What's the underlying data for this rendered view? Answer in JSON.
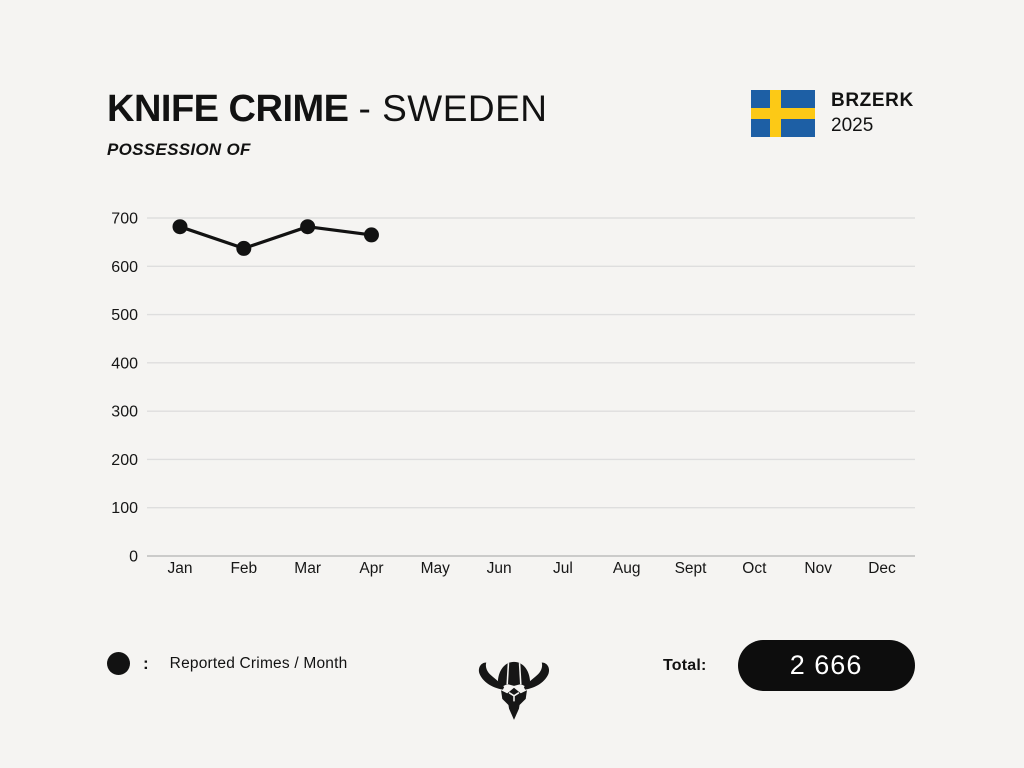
{
  "page": {
    "background": "#f5f4f2",
    "text_color": "#121212",
    "grid_color": "#dedede",
    "pill_bg": "#0d0d0d",
    "pill_text": "#ffffff"
  },
  "header": {
    "title_bold": "KNIFE CRIME",
    "title_light": "- SWEDEN",
    "subtitle": "POSSESSION OF",
    "brand": {
      "name": "BRZERK",
      "year": "2025"
    },
    "flag": {
      "country": "Sweden",
      "blue": "#1d5fa5",
      "yellow": "#fcc916"
    }
  },
  "chart_data": {
    "type": "line",
    "title": "Knife Crime - Sweden (Possession of), reported crimes per month 2025",
    "categories": [
      "Jan",
      "Feb",
      "Mar",
      "Apr",
      "May",
      "Jun",
      "Jul",
      "Aug",
      "Sept",
      "Oct",
      "Nov",
      "Dec"
    ],
    "series": [
      {
        "name": "Reported Crimes / Month",
        "color": "#121212",
        "values": [
          682,
          637,
          682,
          665,
          null,
          null,
          null,
          null,
          null,
          null,
          null,
          null
        ]
      }
    ],
    "xlabel": "",
    "ylabel": "",
    "ylim": [
      0,
      700
    ],
    "ytick_step": 100,
    "grid": true,
    "legend_position": "bottom-left",
    "marker": "filled-circle"
  },
  "footer": {
    "legend": {
      "marker": "filled-circle",
      "separator": ":",
      "label": "Reported Crimes / Month"
    },
    "logo": "viking-helmet",
    "total_label": "Total:",
    "total_value": "2 666"
  }
}
